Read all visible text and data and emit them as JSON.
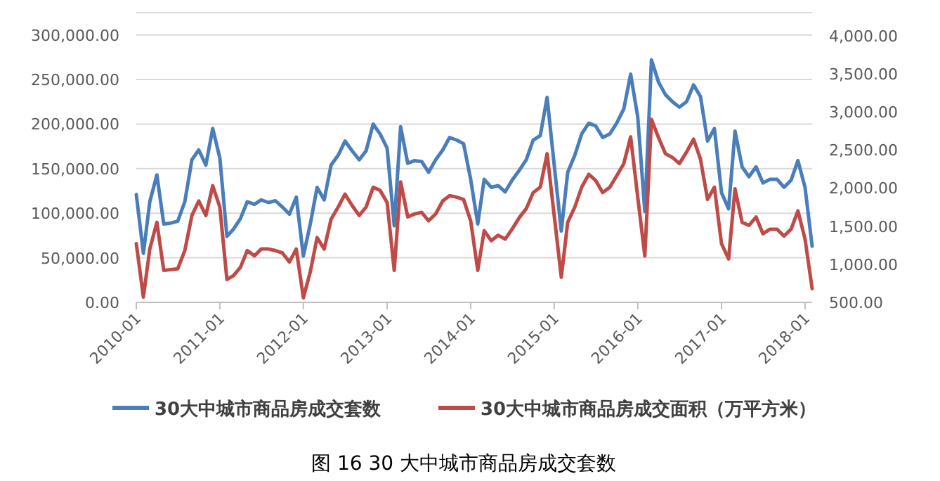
{
  "chart_data": {
    "type": "line",
    "title": "图 16 30 大中城市商品房成交套数",
    "x": [
      "2010-01",
      "2010-02",
      "2010-03",
      "2010-04",
      "2010-05",
      "2010-06",
      "2010-07",
      "2010-08",
      "2010-09",
      "2010-10",
      "2010-11",
      "2010-12",
      "2011-01",
      "2011-02",
      "2011-03",
      "2011-04",
      "2011-05",
      "2011-06",
      "2011-07",
      "2011-08",
      "2011-09",
      "2011-10",
      "2011-11",
      "2011-12",
      "2012-01",
      "2012-02",
      "2012-03",
      "2012-04",
      "2012-05",
      "2012-06",
      "2012-07",
      "2012-08",
      "2012-09",
      "2012-10",
      "2012-11",
      "2012-12",
      "2013-01",
      "2013-02",
      "2013-03",
      "2013-04",
      "2013-05",
      "2013-06",
      "2013-07",
      "2013-08",
      "2013-09",
      "2013-10",
      "2013-11",
      "2013-12",
      "2014-01",
      "2014-02",
      "2014-03",
      "2014-04",
      "2014-05",
      "2014-06",
      "2014-07",
      "2014-08",
      "2014-09",
      "2014-10",
      "2014-11",
      "2014-12",
      "2015-01",
      "2015-02",
      "2015-03",
      "2015-04",
      "2015-05",
      "2015-06",
      "2015-07",
      "2015-08",
      "2015-09",
      "2015-10",
      "2015-11",
      "2015-12",
      "2016-01",
      "2016-02",
      "2016-03",
      "2016-04",
      "2016-05",
      "2016-06",
      "2016-07",
      "2016-08",
      "2016-09",
      "2016-10",
      "2016-11",
      "2016-12",
      "2017-01",
      "2017-02",
      "2017-03",
      "2017-04",
      "2017-05",
      "2017-06",
      "2017-07",
      "2017-08",
      "2017-09",
      "2017-10",
      "2017-11",
      "2017-12",
      "2018-01",
      "2018-02"
    ],
    "series": [
      {
        "name": "30大中城市商品房成交套数",
        "color": "#4a7ebb",
        "values": [
          121000,
          55000,
          113000,
          143000,
          88000,
          89000,
          91000,
          113000,
          160000,
          171000,
          154000,
          195000,
          162000,
          74000,
          82000,
          94000,
          113000,
          110000,
          115000,
          112000,
          114000,
          107000,
          99000,
          118000,
          52000,
          89000,
          129000,
          115000,
          154000,
          165000,
          181000,
          170000,
          160000,
          170000,
          200000,
          189000,
          173000,
          86000,
          197000,
          156000,
          159000,
          158000,
          146000,
          160000,
          171000,
          185000,
          182000,
          178000,
          138000,
          88000,
          138000,
          129000,
          131000,
          124000,
          137000,
          148000,
          160000,
          182000,
          187000,
          230000,
          154000,
          80000,
          146000,
          165000,
          189000,
          201000,
          198000,
          185000,
          189000,
          201000,
          217000,
          256000,
          208000,
          102000,
          272000,
          247000,
          233000,
          225000,
          219000,
          225000,
          244000,
          231000,
          181000,
          195000,
          123000,
          105000,
          192000,
          152000,
          141000,
          152000,
          134000,
          138000,
          138000,
          129000,
          137000,
          159000,
          129000,
          63000
        ]
      },
      {
        "name": "30大中城市商品房成交面积（万平方米）",
        "color": "#be4b48",
        "axis": "y2",
        "values": [
          1270,
          570,
          1200,
          1550,
          920,
          930,
          940,
          1180,
          1640,
          1830,
          1640,
          2030,
          1750,
          800,
          850,
          960,
          1180,
          1110,
          1200,
          1200,
          1180,
          1150,
          1030,
          1200,
          560,
          910,
          1350,
          1200,
          1590,
          1750,
          1920,
          1770,
          1640,
          1750,
          2010,
          1970,
          1810,
          920,
          2080,
          1620,
          1660,
          1680,
          1570,
          1660,
          1830,
          1900,
          1880,
          1850,
          1570,
          920,
          1440,
          1310,
          1380,
          1330,
          1460,
          1610,
          1730,
          1940,
          2010,
          2450,
          1640,
          830,
          1550,
          1750,
          2010,
          2180,
          2100,
          1940,
          2010,
          2160,
          2320,
          2670,
          1880,
          1110,
          2900,
          2660,
          2450,
          2400,
          2320,
          2470,
          2640,
          2380,
          1850,
          2010,
          1270,
          1070,
          1990,
          1550,
          1510,
          1620,
          1400,
          1460,
          1460,
          1370,
          1460,
          1700,
          1330,
          680
        ]
      }
    ],
    "xlim": [
      "2010-01",
      "2018-02"
    ],
    "xticks": [
      "2010-01",
      "2011-01",
      "2012-01",
      "2013-01",
      "2014-01",
      "2015-01",
      "2016-01",
      "2017-01",
      "2018-01"
    ],
    "ylim": [
      0,
      325000
    ],
    "yticks": [
      {
        "value": 0,
        "label": "0.00"
      },
      {
        "value": 50000,
        "label": "50,000.00"
      },
      {
        "value": 100000,
        "label": "100,000.00"
      },
      {
        "value": 150000,
        "label": "150,000.00"
      },
      {
        "value": 200000,
        "label": "200,000.00"
      },
      {
        "value": 250000,
        "label": "250,000.00"
      },
      {
        "value": 300000,
        "label": "300,000.00"
      }
    ],
    "y2lim": [
      500,
      4300
    ],
    "y2ticks": [
      {
        "value": 500,
        "label": "500.00"
      },
      {
        "value": 1000,
        "label": "1,000.00"
      },
      {
        "value": 1500,
        "label": "1,500.00"
      },
      {
        "value": 2000,
        "label": "2,000.00"
      },
      {
        "value": 2500,
        "label": "2,500.00"
      },
      {
        "value": 3000,
        "label": "3,000.00"
      },
      {
        "value": 3500,
        "label": "3,500.00"
      },
      {
        "value": 4000,
        "label": "4,000.00"
      }
    ],
    "grid": "y",
    "legend": "bottom",
    "marker": "none",
    "line_style": "solid"
  }
}
